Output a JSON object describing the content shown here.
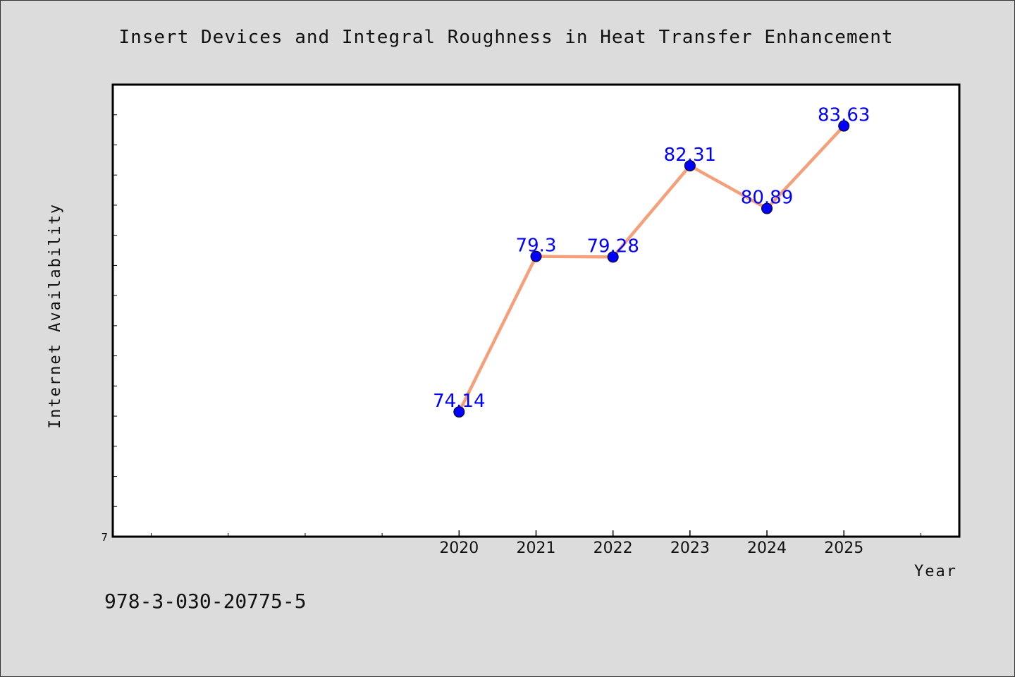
{
  "chart_data": {
    "type": "line",
    "title": "Insert Devices and Integral Roughness in Heat Transfer Enhancement",
    "xlabel": "Year",
    "ylabel": "Internet Availability",
    "categories": [
      "2020",
      "2021",
      "2022",
      "2023",
      "2024",
      "2025"
    ],
    "series": [
      {
        "values": [
          74.14,
          79.3,
          79.28,
          82.31,
          80.89,
          83.63
        ],
        "data_labels": [
          "74.14",
          "79.3",
          "79.28",
          "82.31",
          "80.89",
          "83.63"
        ]
      }
    ],
    "xlim": [
      2015.5,
      2026.5
    ],
    "ylim": [
      70,
      85
    ],
    "y_tick_labels": [
      "7"
    ],
    "grid": false,
    "legend": "none",
    "colors": {
      "line": "#f4a07a",
      "marker": "#0000ff",
      "data_label": "#0000ff",
      "background": "#dcdcdc",
      "plot_background": "#ffffff"
    }
  },
  "footer": {
    "isbn": "978-3-030-20775-5"
  }
}
